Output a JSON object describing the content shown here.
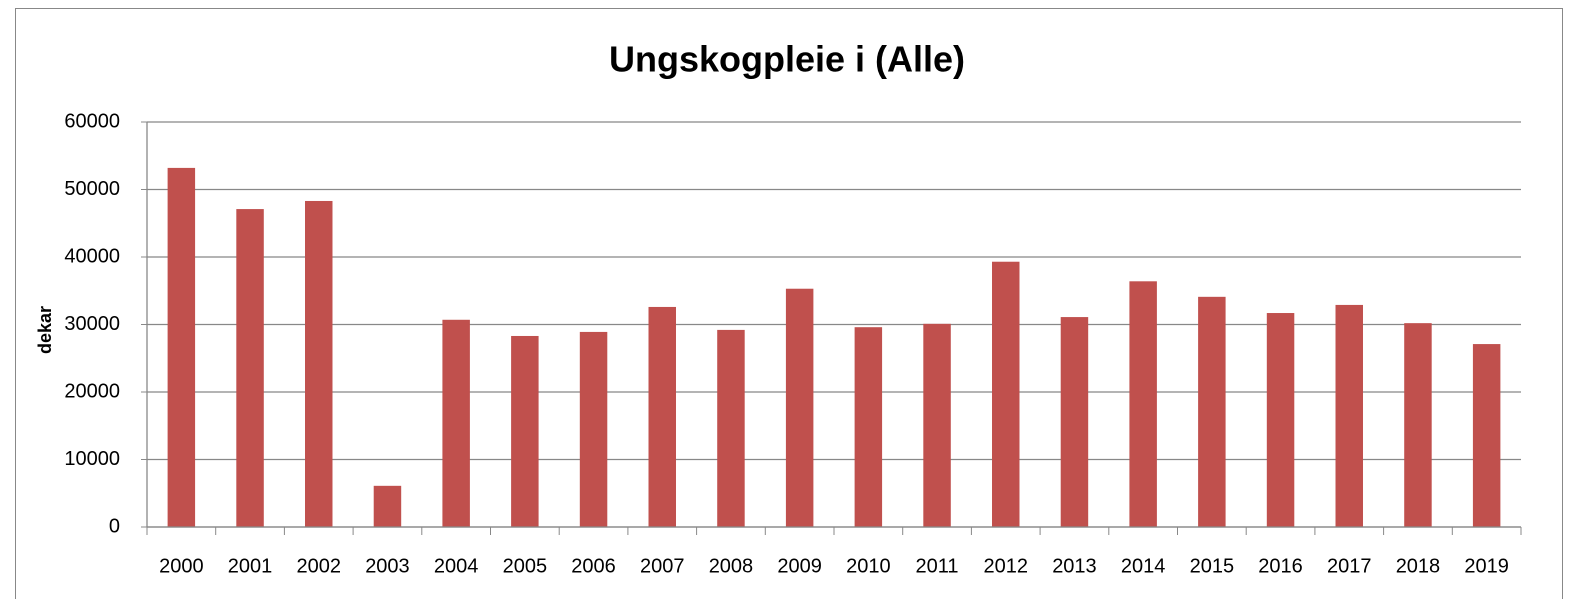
{
  "chart_data": {
    "type": "bar",
    "title": "Ungskogpleie i (Alle)",
    "y_label": "dekar",
    "categories": [
      "2000",
      "2001",
      "2002",
      "2003",
      "2004",
      "2005",
      "2006",
      "2007",
      "2008",
      "2009",
      "2010",
      "2011",
      "2012",
      "2013",
      "2014",
      "2015",
      "2016",
      "2017",
      "2018",
      "2019"
    ],
    "values": [
      53200,
      47100,
      48300,
      6100,
      30700,
      28300,
      28900,
      32600,
      29200,
      35300,
      29600,
      30100,
      39300,
      31100,
      36400,
      34100,
      31700,
      32900,
      30200,
      27100
    ],
    "color": "#c0504d",
    "ylim": [
      0,
      60000
    ],
    "yticks": [
      0,
      10000,
      20000,
      30000,
      40000,
      50000,
      60000
    ],
    "grid": true
  }
}
